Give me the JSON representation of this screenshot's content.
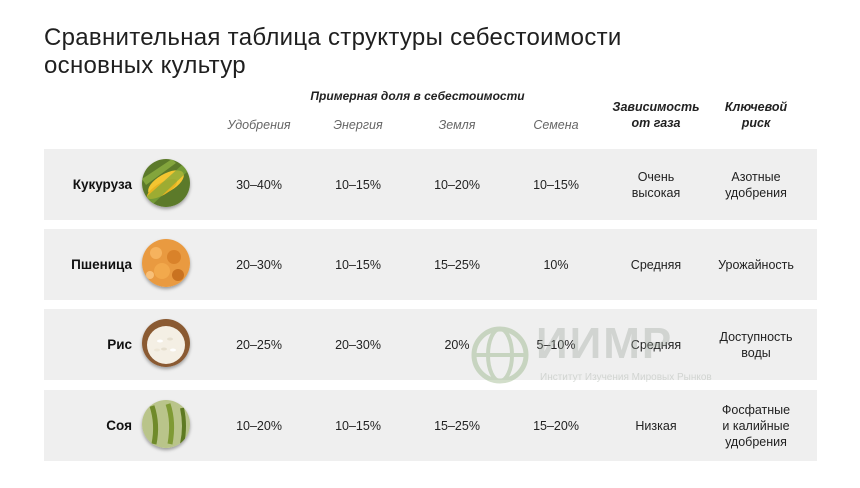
{
  "title": {
    "line1": "Сравнительная таблица структуры себестоимости",
    "line2": "основных культур"
  },
  "header": {
    "group": "Примерная доля в себестоимости",
    "columns": [
      "Удобрения",
      "Энергия",
      "Земля",
      "Семена"
    ],
    "gas_dependency": [
      "Зависимость",
      "от газа"
    ],
    "key_risk": [
      "Ключевой",
      "риск"
    ]
  },
  "rows": [
    {
      "crop": "Кукуруза",
      "image": "corn-image",
      "fertilizers": "30–40%",
      "energy": "10–15%",
      "land": "10–20%",
      "seeds": "10–15%",
      "gas_dependency": [
        "Очень",
        "высокая"
      ],
      "key_risk": [
        "Азотные",
        "удобрения"
      ]
    },
    {
      "crop": "Пшеница",
      "image": "wheat-image",
      "fertilizers": "20–30%",
      "energy": "10–15%",
      "land": "15–25%",
      "seeds": "10%",
      "gas_dependency": [
        "Средняя"
      ],
      "key_risk": [
        "Урожайность"
      ]
    },
    {
      "crop": "Рис",
      "image": "rice-image",
      "fertilizers": "20–25%",
      "energy": "20–30%",
      "land": "20%",
      "seeds": "5–10%",
      "gas_dependency": [
        "Средняя"
      ],
      "key_risk": [
        "Доступность",
        "воды"
      ]
    },
    {
      "crop": "Соя",
      "image": "soy-image",
      "fertilizers": "10–20%",
      "energy": "10–15%",
      "land": "15–25%",
      "seeds": "15–20%",
      "gas_dependency": [
        "Низкая"
      ],
      "key_risk": [
        "Фосфатные",
        "и калийные",
        "удобрения"
      ]
    }
  ],
  "watermark": {
    "logo": "ИИМР",
    "subtitle": "Институт Изучения Мировых Рынков"
  }
}
